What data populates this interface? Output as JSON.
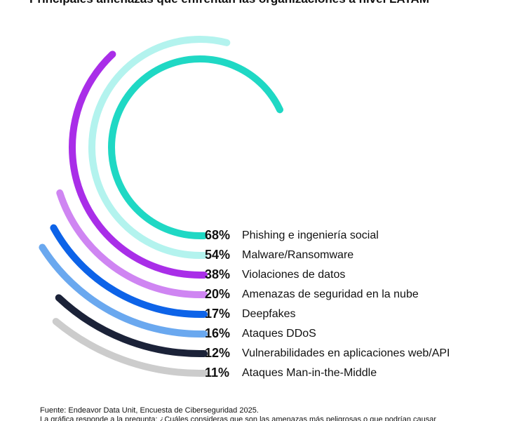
{
  "chart_data": {
    "type": "radial_bar",
    "title": "Principales amenazas que enfrentan las organizaciones a nivel LATAM",
    "categories": [
      "Phishing e ingeniería social",
      "Malware/Ransomware",
      "Violaciones de datos",
      "Amenazas de seguridad en la nube",
      "Deepfakes",
      "Ataques DDoS",
      "Vulnerabilidades en aplicaciones web/API",
      "Ataques Man-in-the-Middle"
    ],
    "values": [
      68,
      54,
      38,
      20,
      17,
      16,
      12,
      11
    ],
    "value_labels": [
      "68%",
      "54%",
      "38%",
      "20%",
      "17%",
      "16%",
      "12%",
      "11%"
    ],
    "colors": [
      "#1fd8c4",
      "#b3f3ee",
      "#a92ee8",
      "#cf85f2",
      "#0d63e8",
      "#6aa8ef",
      "#1b2238",
      "#cccccc"
    ],
    "scale_max": 100,
    "source": "Fuente: Endeavor Data Unit, Encuesta de Ciberseguridad 2025.",
    "note": "La gráfica responde a la pregunta: ¿Cuáles consideras que son las amenazas más peligrosas o que podrían causar"
  }
}
